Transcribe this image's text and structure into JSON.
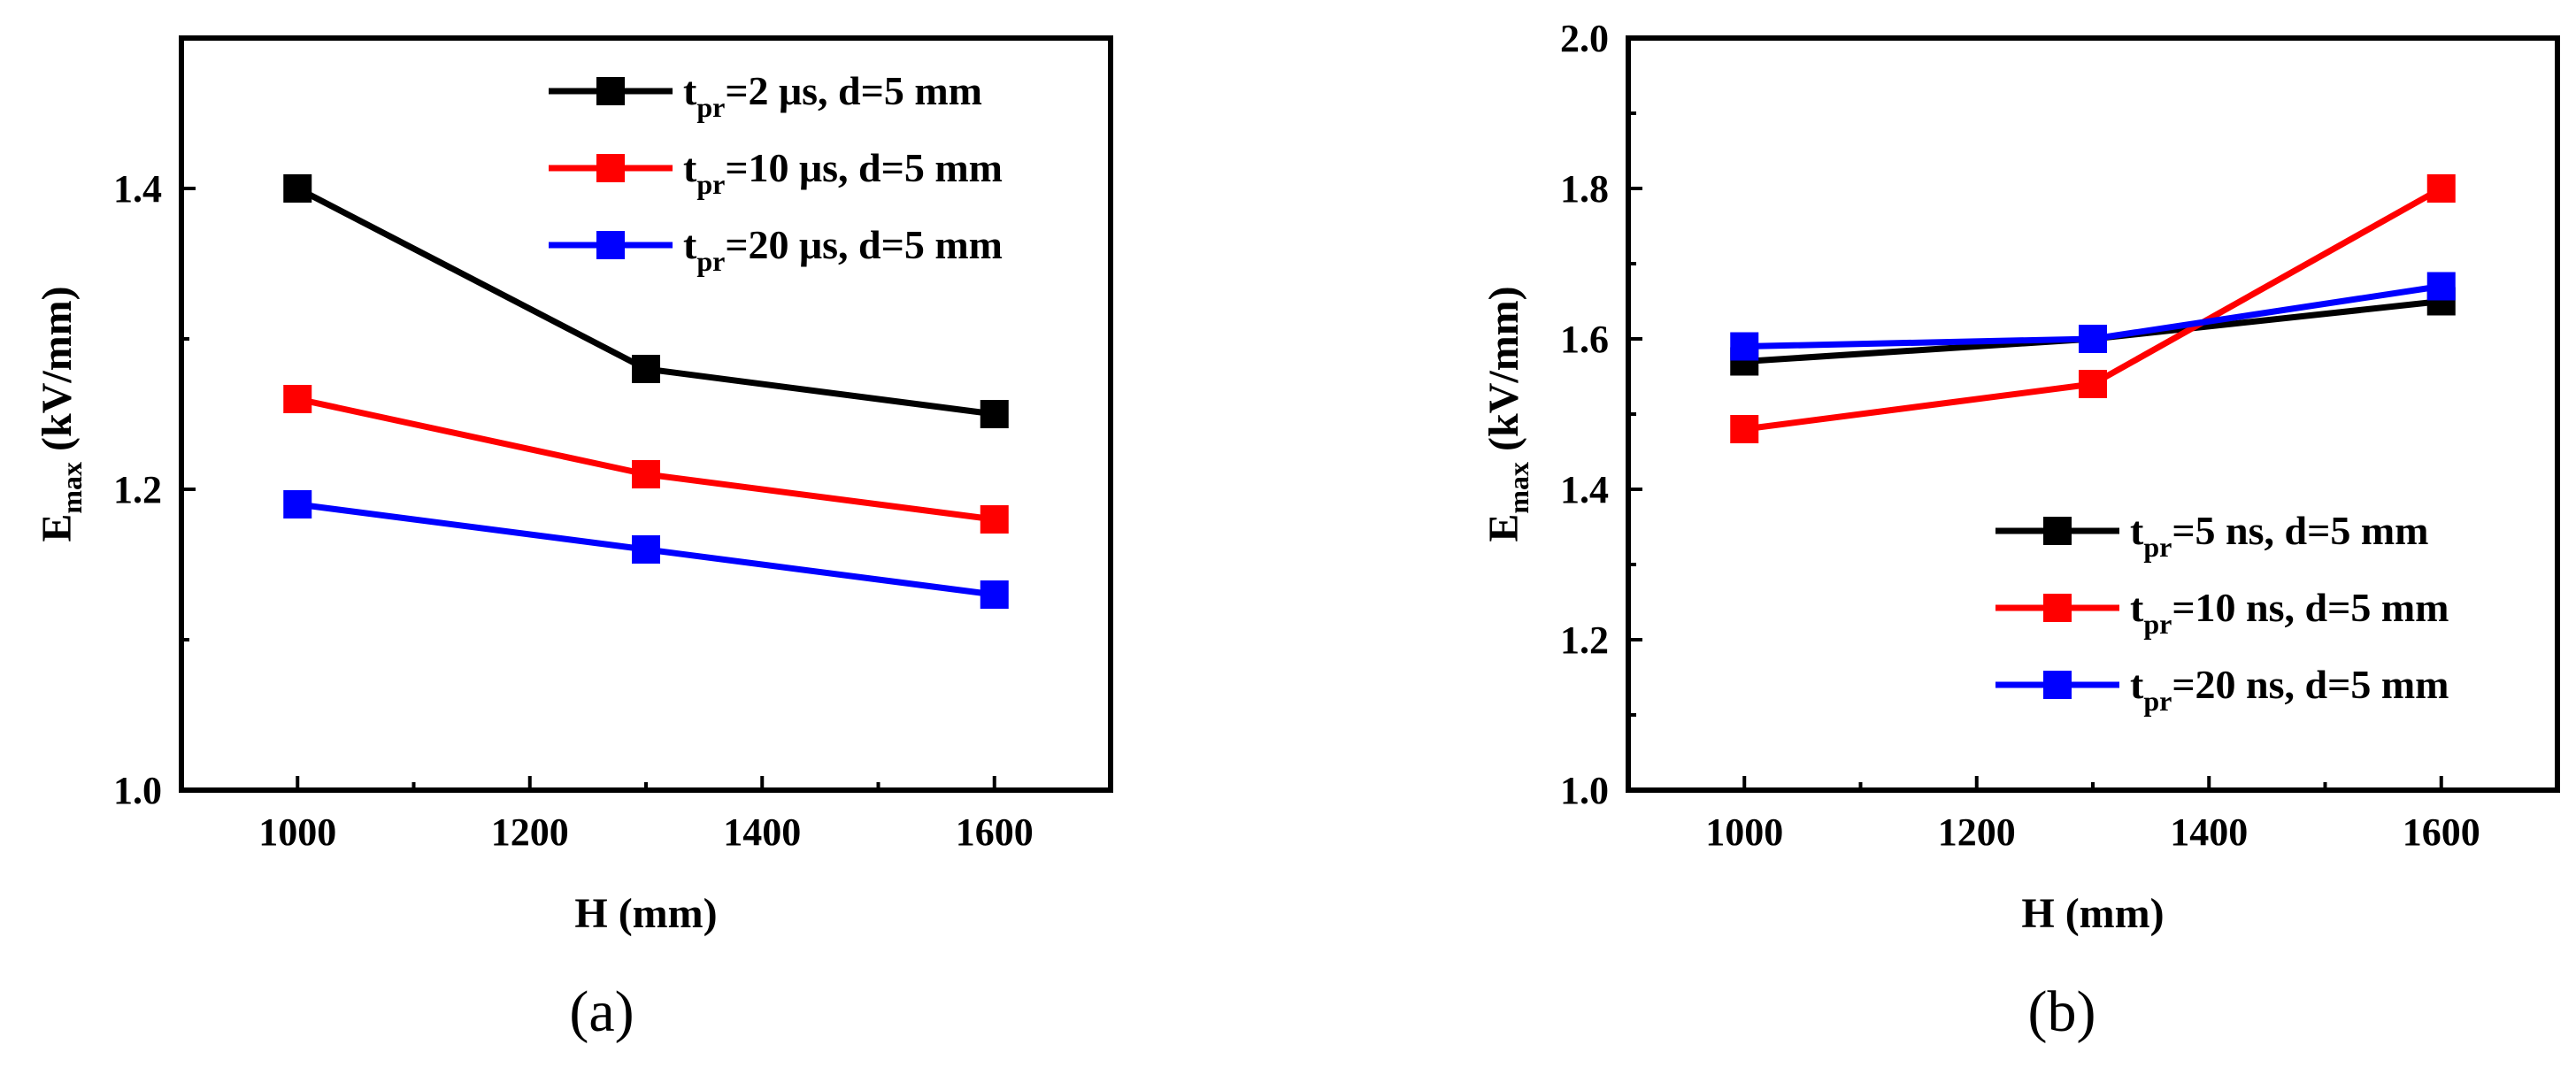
{
  "chart_data": [
    {
      "type": "line",
      "panel_label": "(a)",
      "x": [
        1000,
        1300,
        1600
      ],
      "xlabel": "H (mm)",
      "ylabel": "E_max (kV/mm)",
      "ylabel_main": "E",
      "ylabel_sub": "max",
      "ylabel_unit": " (kV/mm)",
      "xlim": [
        900,
        1700
      ],
      "ylim": [
        1.0,
        1.5
      ],
      "xticks": [
        1000,
        1200,
        1400,
        1600
      ],
      "xtick_labels": [
        "1000",
        "1200",
        "1400",
        "1600"
      ],
      "yticks": [
        1.0,
        1.2,
        1.4
      ],
      "ytick_labels": [
        "1.0",
        "1.2",
        "1.4"
      ],
      "legend_position": "top-right",
      "series": [
        {
          "name": "tpr=2 μs, d=5 mm",
          "label_main": "t",
          "label_sub": "pr",
          "label_rest": "=2 μs, d=5 mm",
          "color": "#000000",
          "values": [
            1.4,
            1.28,
            1.25
          ]
        },
        {
          "name": "tpr=10 μs, d=5 mm",
          "label_main": "t",
          "label_sub": "pr",
          "label_rest": "=10 μs, d=5 mm",
          "color": "#ff0000",
          "values": [
            1.26,
            1.21,
            1.18
          ]
        },
        {
          "name": "tpr=20 μs, d=5 mm",
          "label_main": "t",
          "label_sub": "pr",
          "label_rest": "=20 μs, d=5 mm",
          "color": "#0000ff",
          "values": [
            1.19,
            1.16,
            1.13
          ]
        }
      ]
    },
    {
      "type": "line",
      "panel_label": "(b)",
      "x": [
        1000,
        1300,
        1600
      ],
      "xlabel": "H (mm)",
      "ylabel": "E_max (kV/mm)",
      "ylabel_main": "E",
      "ylabel_sub": "max",
      "ylabel_unit": " (kV/mm)",
      "xlim": [
        900,
        1700
      ],
      "ylim": [
        1.0,
        2.0
      ],
      "xticks": [
        1000,
        1200,
        1400,
        1600
      ],
      "xtick_labels": [
        "1000",
        "1200",
        "1400",
        "1600"
      ],
      "yticks": [
        1.0,
        1.2,
        1.4,
        1.6,
        1.8,
        2.0
      ],
      "ytick_labels": [
        "1.0",
        "1.2",
        "1.4",
        "1.6",
        "1.8",
        "2.0"
      ],
      "legend_position": "bottom-right",
      "series": [
        {
          "name": "tpr=5 ns, d=5 mm",
          "label_main": "t",
          "label_sub": "pr",
          "label_rest": "=5 ns, d=5 mm",
          "color": "#000000",
          "values": [
            1.57,
            1.6,
            1.65
          ]
        },
        {
          "name": "tpr=10 ns, d=5 mm",
          "label_main": "t",
          "label_sub": "pr",
          "label_rest": "=10 ns, d=5 mm",
          "color": "#ff0000",
          "values": [
            1.48,
            1.54,
            1.8
          ]
        },
        {
          "name": "tpr=20 ns, d=5 mm",
          "label_main": "t",
          "label_sub": "pr",
          "label_rest": "=20 ns, d=5 mm",
          "color": "#0000ff",
          "values": [
            1.59,
            1.6,
            1.67
          ]
        }
      ]
    }
  ]
}
